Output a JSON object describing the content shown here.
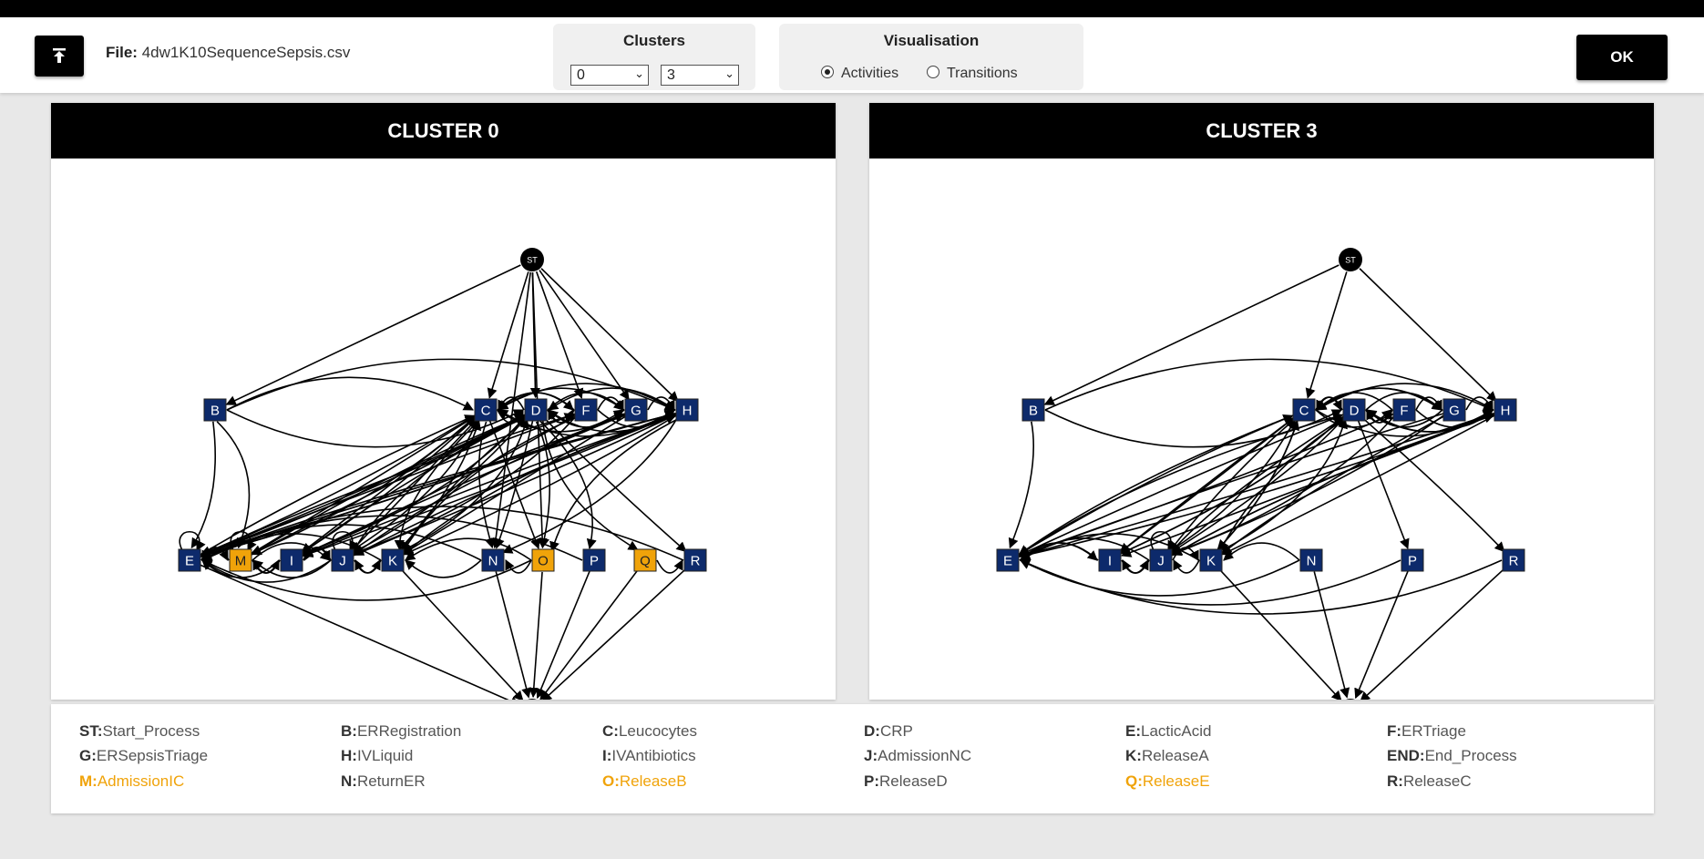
{
  "header": {
    "file_label": "File:",
    "file_name": "4dw1K10SequenceSepsis.csv",
    "clusters_title": "Clusters",
    "cluster_select_1": "0",
    "cluster_select_2": "3",
    "visualisation_title": "Visualisation",
    "radio_activities": "Activities",
    "radio_transitions": "Transitions",
    "selected_visualisation": "Activities",
    "ok_label": "OK"
  },
  "panels": [
    {
      "title": "CLUSTER 0",
      "nodes": [
        {
          "id": "ST",
          "label": "ST",
          "kind": "terminal"
        },
        {
          "id": "B",
          "label": "B",
          "kind": "activity"
        },
        {
          "id": "C",
          "label": "C",
          "kind": "activity"
        },
        {
          "id": "D",
          "label": "D",
          "kind": "activity"
        },
        {
          "id": "F",
          "label": "F",
          "kind": "activity"
        },
        {
          "id": "G",
          "label": "G",
          "kind": "activity"
        },
        {
          "id": "H",
          "label": "H",
          "kind": "activity"
        },
        {
          "id": "E",
          "label": "E",
          "kind": "activity"
        },
        {
          "id": "M",
          "label": "M",
          "kind": "highlight"
        },
        {
          "id": "I",
          "label": "I",
          "kind": "activity"
        },
        {
          "id": "J",
          "label": "J",
          "kind": "activity"
        },
        {
          "id": "K",
          "label": "K",
          "kind": "activity"
        },
        {
          "id": "N",
          "label": "N",
          "kind": "activity"
        },
        {
          "id": "O",
          "label": "O",
          "kind": "highlight"
        },
        {
          "id": "P",
          "label": "P",
          "kind": "activity"
        },
        {
          "id": "Q",
          "label": "Q",
          "kind": "highlight"
        },
        {
          "id": "R",
          "label": "R",
          "kind": "activity"
        },
        {
          "id": "END",
          "label": "END",
          "kind": "terminal"
        }
      ],
      "edges": [
        [
          "ST",
          "B"
        ],
        [
          "ST",
          "C"
        ],
        [
          "ST",
          "D"
        ],
        [
          "ST",
          "F"
        ],
        [
          "ST",
          "G"
        ],
        [
          "ST",
          "H"
        ],
        [
          "ST",
          "N"
        ],
        [
          "ST",
          "O"
        ],
        [
          "B",
          "E"
        ],
        [
          "B",
          "M"
        ],
        [
          "B",
          "H"
        ],
        [
          "B",
          "D"
        ],
        [
          "B",
          "C"
        ],
        [
          "C",
          "D"
        ],
        [
          "C",
          "F"
        ],
        [
          "C",
          "G"
        ],
        [
          "C",
          "H"
        ],
        [
          "C",
          "E"
        ],
        [
          "C",
          "I"
        ],
        [
          "C",
          "J"
        ],
        [
          "C",
          "K"
        ],
        [
          "C",
          "N"
        ],
        [
          "C",
          "O"
        ],
        [
          "C",
          "M"
        ],
        [
          "D",
          "C"
        ],
        [
          "D",
          "F"
        ],
        [
          "D",
          "G"
        ],
        [
          "D",
          "H"
        ],
        [
          "D",
          "E"
        ],
        [
          "D",
          "I"
        ],
        [
          "D",
          "J"
        ],
        [
          "D",
          "K"
        ],
        [
          "D",
          "N"
        ],
        [
          "D",
          "O"
        ],
        [
          "D",
          "P"
        ],
        [
          "D",
          "Q"
        ],
        [
          "D",
          "R"
        ],
        [
          "D",
          "M"
        ],
        [
          "F",
          "C"
        ],
        [
          "F",
          "D"
        ],
        [
          "F",
          "G"
        ],
        [
          "F",
          "H"
        ],
        [
          "F",
          "E"
        ],
        [
          "F",
          "I"
        ],
        [
          "F",
          "J"
        ],
        [
          "F",
          "K"
        ],
        [
          "G",
          "C"
        ],
        [
          "G",
          "D"
        ],
        [
          "G",
          "H"
        ],
        [
          "G",
          "E"
        ],
        [
          "G",
          "I"
        ],
        [
          "G",
          "J"
        ],
        [
          "G",
          "K"
        ],
        [
          "H",
          "C"
        ],
        [
          "H",
          "D"
        ],
        [
          "H",
          "E"
        ],
        [
          "H",
          "I"
        ],
        [
          "H",
          "J"
        ],
        [
          "H",
          "K"
        ],
        [
          "H",
          "N"
        ],
        [
          "H",
          "O"
        ],
        [
          "E",
          "C"
        ],
        [
          "E",
          "D"
        ],
        [
          "E",
          "H"
        ],
        [
          "E",
          "G"
        ],
        [
          "E",
          "F"
        ],
        [
          "E",
          "M"
        ],
        [
          "E",
          "END"
        ],
        [
          "M",
          "E"
        ],
        [
          "M",
          "I"
        ],
        [
          "M",
          "J"
        ],
        [
          "M",
          "C"
        ],
        [
          "M",
          "D"
        ],
        [
          "I",
          "E"
        ],
        [
          "I",
          "J"
        ],
        [
          "I",
          "M"
        ],
        [
          "I",
          "D"
        ],
        [
          "I",
          "C"
        ],
        [
          "I",
          "H"
        ],
        [
          "J",
          "E"
        ],
        [
          "J",
          "I"
        ],
        [
          "J",
          "K"
        ],
        [
          "J",
          "C"
        ],
        [
          "J",
          "D"
        ],
        [
          "J",
          "H"
        ],
        [
          "J",
          "M"
        ],
        [
          "K",
          "E"
        ],
        [
          "K",
          "J"
        ],
        [
          "K",
          "C"
        ],
        [
          "K",
          "D"
        ],
        [
          "K",
          "H"
        ],
        [
          "K",
          "END"
        ],
        [
          "N",
          "E"
        ],
        [
          "N",
          "K"
        ],
        [
          "N",
          "END"
        ],
        [
          "O",
          "N"
        ],
        [
          "O",
          "K"
        ],
        [
          "O",
          "E"
        ],
        [
          "O",
          "END"
        ],
        [
          "P",
          "END"
        ],
        [
          "P",
          "E"
        ],
        [
          "Q",
          "R"
        ],
        [
          "Q",
          "END"
        ],
        [
          "R",
          "END"
        ],
        [
          "R",
          "E"
        ]
      ],
      "loops": [
        "E",
        "M",
        "J"
      ]
    },
    {
      "title": "CLUSTER 3",
      "nodes": [
        {
          "id": "ST",
          "label": "ST",
          "kind": "terminal"
        },
        {
          "id": "B",
          "label": "B",
          "kind": "activity"
        },
        {
          "id": "C",
          "label": "C",
          "kind": "activity"
        },
        {
          "id": "D",
          "label": "D",
          "kind": "activity"
        },
        {
          "id": "F",
          "label": "F",
          "kind": "activity"
        },
        {
          "id": "G",
          "label": "G",
          "kind": "activity"
        },
        {
          "id": "H",
          "label": "H",
          "kind": "activity"
        },
        {
          "id": "E",
          "label": "E",
          "kind": "activity"
        },
        {
          "id": "I",
          "label": "I",
          "kind": "activity"
        },
        {
          "id": "J",
          "label": "J",
          "kind": "activity"
        },
        {
          "id": "K",
          "label": "K",
          "kind": "activity"
        },
        {
          "id": "N",
          "label": "N",
          "kind": "activity"
        },
        {
          "id": "P",
          "label": "P",
          "kind": "activity"
        },
        {
          "id": "R",
          "label": "R",
          "kind": "activity"
        },
        {
          "id": "END",
          "label": "END",
          "kind": "terminal"
        }
      ],
      "edges": [
        [
          "ST",
          "B"
        ],
        [
          "ST",
          "C"
        ],
        [
          "ST",
          "H"
        ],
        [
          "B",
          "E"
        ],
        [
          "B",
          "H"
        ],
        [
          "B",
          "D"
        ],
        [
          "C",
          "D"
        ],
        [
          "C",
          "F"
        ],
        [
          "C",
          "G"
        ],
        [
          "C",
          "H"
        ],
        [
          "C",
          "E"
        ],
        [
          "C",
          "I"
        ],
        [
          "C",
          "J"
        ],
        [
          "C",
          "K"
        ],
        [
          "D",
          "C"
        ],
        [
          "D",
          "F"
        ],
        [
          "D",
          "G"
        ],
        [
          "D",
          "H"
        ],
        [
          "D",
          "E"
        ],
        [
          "D",
          "I"
        ],
        [
          "D",
          "J"
        ],
        [
          "D",
          "K"
        ],
        [
          "D",
          "P"
        ],
        [
          "D",
          "R"
        ],
        [
          "F",
          "C"
        ],
        [
          "F",
          "D"
        ],
        [
          "F",
          "G"
        ],
        [
          "F",
          "H"
        ],
        [
          "F",
          "E"
        ],
        [
          "F",
          "J"
        ],
        [
          "G",
          "C"
        ],
        [
          "G",
          "D"
        ],
        [
          "G",
          "H"
        ],
        [
          "G",
          "E"
        ],
        [
          "G",
          "J"
        ],
        [
          "G",
          "K"
        ],
        [
          "H",
          "C"
        ],
        [
          "H",
          "D"
        ],
        [
          "H",
          "E"
        ],
        [
          "H",
          "I"
        ],
        [
          "H",
          "J"
        ],
        [
          "H",
          "K"
        ],
        [
          "E",
          "C"
        ],
        [
          "E",
          "H"
        ],
        [
          "E",
          "I"
        ],
        [
          "E",
          "D"
        ],
        [
          "I",
          "E"
        ],
        [
          "I",
          "J"
        ],
        [
          "I",
          "C"
        ],
        [
          "I",
          "D"
        ],
        [
          "J",
          "E"
        ],
        [
          "J",
          "I"
        ],
        [
          "J",
          "K"
        ],
        [
          "J",
          "C"
        ],
        [
          "J",
          "D"
        ],
        [
          "J",
          "H"
        ],
        [
          "K",
          "E"
        ],
        [
          "K",
          "J"
        ],
        [
          "K",
          "C"
        ],
        [
          "K",
          "D"
        ],
        [
          "K",
          "END"
        ],
        [
          "N",
          "E"
        ],
        [
          "N",
          "K"
        ],
        [
          "N",
          "END"
        ],
        [
          "P",
          "END"
        ],
        [
          "P",
          "E"
        ],
        [
          "R",
          "END"
        ],
        [
          "R",
          "E"
        ]
      ],
      "loops": [
        "J"
      ]
    }
  ],
  "legend": [
    {
      "code": "ST:",
      "name": "Start_Process",
      "highlight": false
    },
    {
      "code": "B:",
      "name": "ERRegistration",
      "highlight": false
    },
    {
      "code": "C:",
      "name": "Leucocytes",
      "highlight": false
    },
    {
      "code": "D:",
      "name": "CRP",
      "highlight": false
    },
    {
      "code": "E:",
      "name": "LacticAcid",
      "highlight": false
    },
    {
      "code": "F:",
      "name": "ERTriage",
      "highlight": false
    },
    {
      "code": "G:",
      "name": "ERSepsisTriage",
      "highlight": false
    },
    {
      "code": "H:",
      "name": "IVLiquid",
      "highlight": false
    },
    {
      "code": "I:",
      "name": "IVAntibiotics",
      "highlight": false
    },
    {
      "code": "J:",
      "name": "AdmissionNC",
      "highlight": false
    },
    {
      "code": "K:",
      "name": "ReleaseA",
      "highlight": false
    },
    {
      "code": "END:",
      "name": "End_Process",
      "highlight": false
    },
    {
      "code": "M:",
      "name": "AdmissionIC",
      "highlight": true
    },
    {
      "code": "N:",
      "name": "ReturnER",
      "highlight": false
    },
    {
      "code": "O:",
      "name": "ReleaseB",
      "highlight": true
    },
    {
      "code": "P:",
      "name": "ReleaseD",
      "highlight": false
    },
    {
      "code": "Q:",
      "name": "ReleaseE",
      "highlight": true
    },
    {
      "code": "R:",
      "name": "ReleaseC",
      "highlight": false
    }
  ],
  "colors": {
    "activity_node": "#0d2a6b",
    "highlight_node": "#f0a30a",
    "terminal_node": "#000000",
    "highlight_text": "#f0a30a"
  }
}
